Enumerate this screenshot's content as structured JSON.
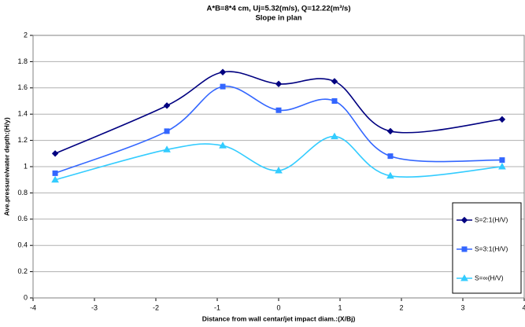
{
  "chart_data": {
    "type": "line",
    "title": "A*B=8*4 cm, Uj=5.32(m/s), Q=12.22(m³/s)",
    "subtitle": "Slope in plan",
    "x_label": "Distance from wall centar/jet impact diam.:(X/Bj)",
    "y_label": "Ave.pressure/water depth:(H/y)",
    "x": [
      -3.64,
      -1.82,
      -0.91,
      0,
      0.91,
      1.82,
      3.64
    ],
    "series": [
      {
        "name": "S=2:1(H/V)",
        "color": "#000080",
        "marker": "diamond",
        "values": [
          1.1,
          1.465,
          1.72,
          1.63,
          1.65,
          1.27,
          1.36
        ]
      },
      {
        "name": "S=3:1(H/V)",
        "color": "#3366ff",
        "marker": "square",
        "values": [
          0.95,
          1.27,
          1.61,
          1.43,
          1.5,
          1.08,
          1.05
        ]
      },
      {
        "name": "S=∞(H/V)",
        "color": "#33ccff",
        "marker": "triangle",
        "values": [
          0.9,
          1.13,
          1.16,
          0.97,
          1.23,
          0.93,
          1.0
        ]
      }
    ],
    "xlim": [
      -4,
      4
    ],
    "xticks": [
      -4,
      -3,
      -2,
      -1,
      0,
      1,
      2,
      3,
      4
    ],
    "ylim": [
      0,
      2
    ],
    "yticks": [
      0,
      0.2,
      0.4,
      0.6,
      0.8,
      1,
      1.2,
      1.4,
      1.6,
      1.8,
      2
    ],
    "grid": true,
    "smooth": true,
    "legend": "right"
  }
}
